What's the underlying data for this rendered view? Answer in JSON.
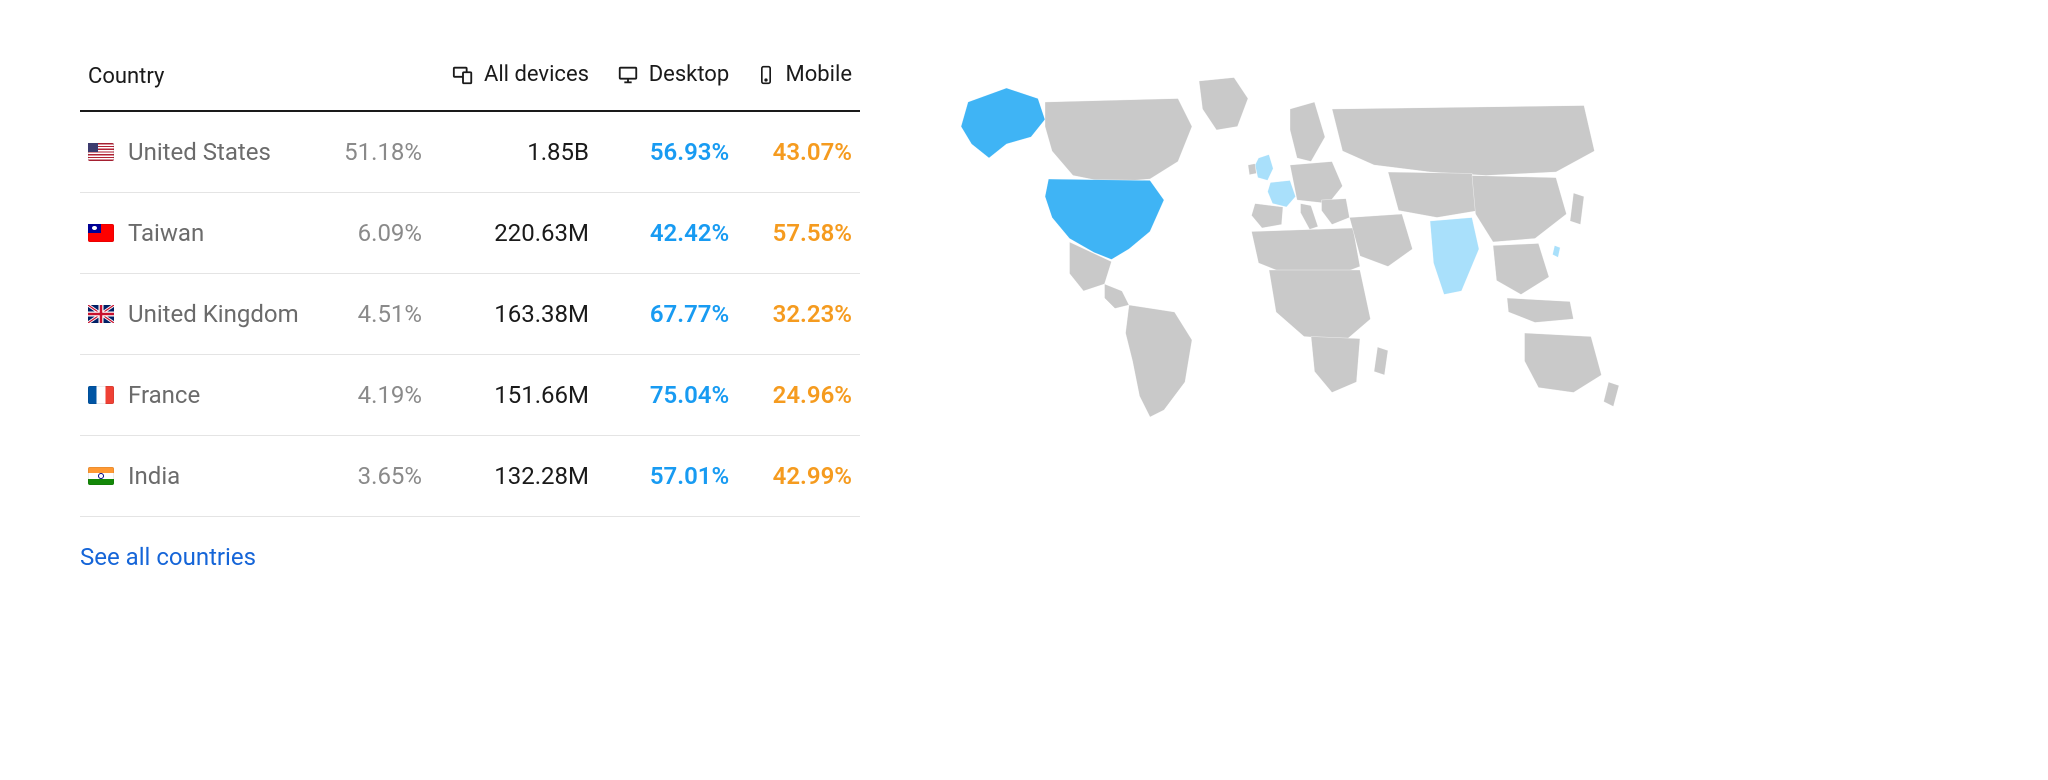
{
  "colors": {
    "desktop": "#189bf2",
    "mobile": "#f59b1f",
    "text_primary": "#1a1a1a",
    "text_muted": "#6b6b6b",
    "text_share": "#8a8a8a",
    "row_border": "#e4e4e4",
    "header_border": "#1a1a1a",
    "link": "#1565d8",
    "map_land": "#c9c9c9",
    "map_highlight_strong": "#3fb4f5",
    "map_highlight_light": "#a9e0fb"
  },
  "table": {
    "columns": {
      "country": "Country",
      "all_devices": "All devices",
      "desktop": "Desktop",
      "mobile": "Mobile"
    },
    "rows": [
      {
        "country": "United States",
        "flag": "us",
        "share": "51.18%",
        "all_devices": "1.85B",
        "desktop": "56.93%",
        "mobile": "43.07%"
      },
      {
        "country": "Taiwan",
        "flag": "tw",
        "share": "6.09%",
        "all_devices": "220.63M",
        "desktop": "42.42%",
        "mobile": "57.58%"
      },
      {
        "country": "United Kingdom",
        "flag": "gb",
        "share": "4.51%",
        "all_devices": "163.38M",
        "desktop": "67.77%",
        "mobile": "32.23%"
      },
      {
        "country": "France",
        "flag": "fr",
        "share": "4.19%",
        "all_devices": "151.66M",
        "desktop": "75.04%",
        "mobile": "24.96%"
      },
      {
        "country": "India",
        "flag": "in",
        "share": "3.65%",
        "all_devices": "132.28M",
        "desktop": "57.01%",
        "mobile": "42.99%"
      }
    ]
  },
  "link": {
    "see_all": "See all countries"
  },
  "map": {
    "highlighted_strong": [
      "United States"
    ],
    "highlighted_light": [
      "United Kingdom",
      "France",
      "India",
      "Taiwan"
    ]
  },
  "flags": {
    "us": "linear-gradient(to bottom,#b22234 0 7.7%,#fff 7.7% 15.4%,#b22234 15.4% 23.1%,#fff 23.1% 30.8%,#b22234 30.8% 38.5%,#fff 38.5% 46.2%,#b22234 46.2% 53.9%,#fff 53.9% 61.6%,#b22234 61.6% 69.3%,#fff 69.3% 77%,#b22234 77% 84.7%,#fff 84.7% 92.4%,#b22234 92.4% 100%)",
    "us_canton": "#3c3b6e",
    "tw": "#fe0000",
    "tw_canton": "#000095",
    "gb": "#fff",
    "fr_left": "#0055a4",
    "fr_mid": "#ffffff",
    "fr_right": "#ef4135",
    "in_top": "#ff9933",
    "in_mid": "#ffffff",
    "in_bot": "#138808",
    "in_wheel": "#000080"
  }
}
